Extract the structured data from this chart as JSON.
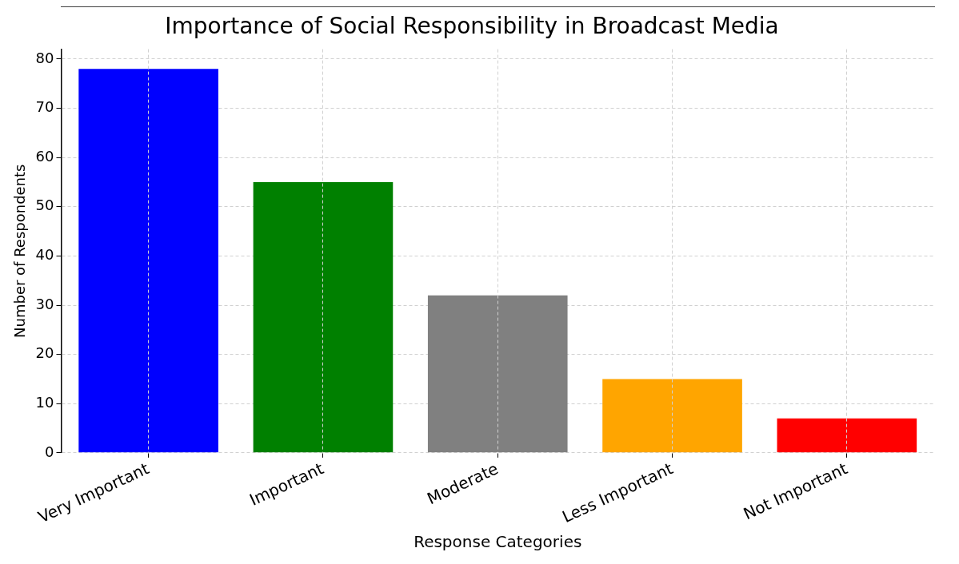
{
  "chart_data": {
    "type": "bar",
    "title": "Importance of Social Responsibility in Broadcast Media",
    "xlabel": "Response Categories",
    "ylabel": "Number of Respondents",
    "categories": [
      "Very Important",
      "Important",
      "Moderate",
      "Less Important",
      "Not Important"
    ],
    "values": [
      78,
      55,
      32,
      15,
      7
    ],
    "colors": [
      "#0000ff",
      "#008000",
      "#808080",
      "#ffa500",
      "#ff0000"
    ],
    "ylim": [
      0,
      82
    ],
    "yticks": [
      0,
      10,
      20,
      30,
      40,
      50,
      60,
      70,
      80
    ],
    "grid": true
  }
}
